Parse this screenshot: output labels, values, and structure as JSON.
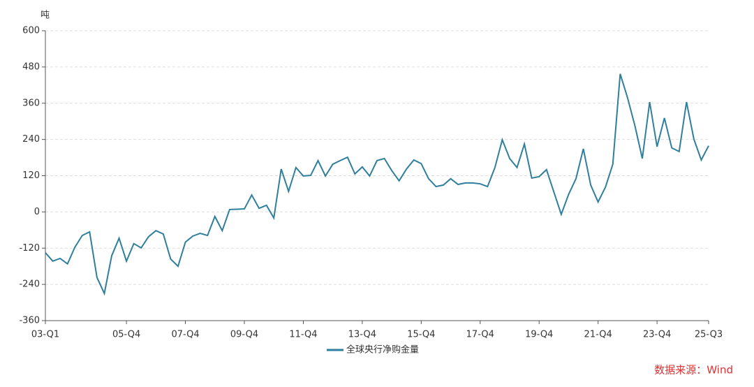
{
  "chart_data": {
    "type": "line",
    "y_label": "吨",
    "source": "数据来源：Wind",
    "categories": [
      "03-Q1",
      null,
      null,
      null,
      null,
      null,
      null,
      null,
      null,
      null,
      null,
      "05-Q4",
      null,
      null,
      null,
      null,
      null,
      null,
      null,
      "07-Q4",
      null,
      null,
      null,
      null,
      null,
      null,
      null,
      "09-Q4",
      null,
      null,
      null,
      null,
      null,
      null,
      null,
      "11-Q4",
      null,
      null,
      null,
      null,
      null,
      null,
      null,
      "13-Q4",
      null,
      null,
      null,
      null,
      null,
      null,
      null,
      "15-Q4",
      null,
      null,
      null,
      null,
      null,
      null,
      null,
      "17-Q4",
      null,
      null,
      null,
      null,
      null,
      null,
      null,
      "19-Q4",
      null,
      null,
      null,
      null,
      null,
      null,
      null,
      "21-Q4",
      null,
      null,
      null,
      null,
      null,
      null,
      null,
      "23-Q4",
      null,
      null,
      null,
      null,
      null,
      null,
      "25-Q3"
    ],
    "series": [
      {
        "name": "全球央行净购金量",
        "color": "#2f7f9c",
        "values": [
          -135,
          -163,
          -154,
          -172,
          -117,
          -78,
          -66,
          -217,
          -270,
          -145,
          -87,
          -163,
          -105,
          -119,
          -82,
          -62,
          -73,
          -156,
          -180,
          -100,
          -80,
          -71,
          -78,
          -15,
          -62,
          8,
          9,
          10,
          56,
          12,
          22,
          -20,
          142,
          68,
          147,
          119,
          121,
          170,
          119,
          158,
          170,
          181,
          126,
          149,
          119,
          170,
          177,
          137,
          103,
          142,
          172,
          160,
          110,
          84,
          89,
          110,
          91,
          96,
          96,
          93,
          84,
          147,
          239,
          177,
          147,
          225,
          112,
          117,
          140,
          66,
          -8,
          58,
          110,
          209,
          89,
          33,
          82,
          158,
          457,
          378,
          285,
          177,
          364,
          216,
          311,
          212,
          200,
          364,
          241,
          172,
          219
        ]
      }
    ],
    "ylim": [
      -360,
      600
    ],
    "yticks": [
      -360,
      -240,
      -120,
      0,
      120,
      240,
      360,
      480,
      600
    ],
    "grid": true
  }
}
